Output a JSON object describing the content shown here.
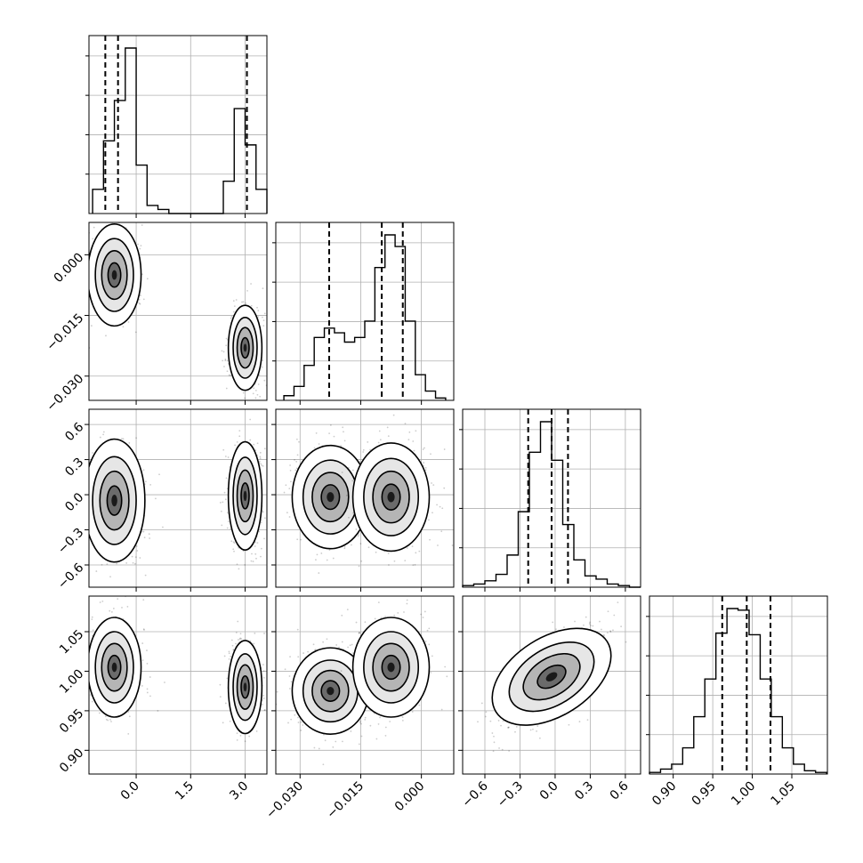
{
  "chart_data": {
    "type": "corner",
    "parameters": 4,
    "x_ticks": [
      {
        "values": [
          0.0,
          1.5,
          3.0
        ],
        "labels": [
          "0.0",
          "1.5",
          "3.0"
        ]
      },
      {
        "values": [
          -0.03,
          -0.015,
          0.0
        ],
        "labels": [
          "−0.030",
          "−0.015",
          "0.000"
        ]
      },
      {
        "values": [
          -0.6,
          -0.3,
          0.0,
          0.3,
          0.6
        ],
        "labels": [
          "−0.6",
          "−0.3",
          "0.0",
          "0.3",
          "0.6"
        ]
      },
      {
        "values": [
          0.9,
          0.95,
          1.0,
          1.05
        ],
        "labels": [
          "0.90",
          "0.95",
          "1.00",
          "1.05"
        ]
      }
    ],
    "y_ticks": {
      "1": {
        "values": [
          0.0,
          -0.015,
          -0.03
        ],
        "labels": [
          "0.000",
          "−0.015",
          "−0.030"
        ]
      },
      "2": {
        "values": [
          0.6,
          0.3,
          0.0,
          -0.3,
          -0.6
        ],
        "labels": [
          "0.6",
          "0.3",
          "0.0",
          "−0.3",
          "−0.6"
        ]
      },
      "3": {
        "values": [
          1.05,
          1.0,
          0.95,
          0.9
        ],
        "labels": [
          "1.05",
          "1.00",
          "0.95",
          "0.90"
        ]
      }
    },
    "ranges": [
      [
        -1.3,
        3.6
      ],
      [
        -0.036,
        0.008
      ],
      [
        -0.79,
        0.73
      ],
      [
        0.87,
        1.095
      ]
    ],
    "histograms": [
      {
        "bins": [
          -1.2,
          -0.9,
          -0.6,
          -0.3,
          0.0,
          0.3,
          0.6,
          0.9,
          1.2,
          1.5,
          1.8,
          2.1,
          2.4,
          2.7,
          3.0,
          3.3,
          3.6
        ],
        "counts": [
          6,
          18,
          28,
          41,
          12,
          2,
          1,
          0,
          0,
          0,
          0,
          0,
          8,
          26,
          17,
          6
        ],
        "quantiles": [
          -0.85,
          -0.5,
          3.05
        ]
      },
      {
        "bins": [
          -0.034,
          -0.0315,
          -0.029,
          -0.0265,
          -0.024,
          -0.0215,
          -0.019,
          -0.0165,
          -0.014,
          -0.0115,
          -0.009,
          -0.0065,
          -0.004,
          -0.0015,
          0.001,
          0.0035,
          0.006
        ],
        "counts": [
          2,
          6,
          15,
          27,
          31,
          29,
          25,
          27,
          34,
          57,
          71,
          66,
          34,
          11,
          4,
          1
        ],
        "quantiles": [
          -0.0228,
          -0.0098,
          -0.0046
        ]
      },
      {
        "bins": [
          -0.79,
          -0.695,
          -0.6,
          -0.505,
          -0.41,
          -0.315,
          -0.22,
          -0.125,
          -0.03,
          0.065,
          0.16,
          0.255,
          0.35,
          0.445,
          0.54,
          0.635,
          0.73
        ],
        "counts": [
          1,
          2,
          4,
          8,
          20,
          47,
          84,
          103,
          79,
          39,
          17,
          7,
          5,
          2,
          1,
          0
        ],
        "quantiles": [
          -0.23,
          -0.03,
          0.11
        ]
      },
      {
        "bins": [
          0.87,
          0.884,
          0.898,
          0.912,
          0.926,
          0.94,
          0.954,
          0.968,
          0.982,
          0.996,
          1.01,
          1.024,
          1.038,
          1.052,
          1.066,
          1.08,
          1.094
        ],
        "counts": [
          1,
          3,
          6,
          16,
          35,
          58,
          86,
          101,
          100,
          85,
          58,
          35,
          16,
          6,
          2,
          1
        ],
        "quantiles": [
          0.962,
          0.993,
          1.023
        ]
      }
    ],
    "modes_2d": {
      "1-0": [
        [
          -0.6,
          -0.005,
          0.35,
          0.006
        ],
        [
          3.0,
          -0.023,
          0.22,
          0.005
        ]
      ],
      "2-0": [
        [
          -0.6,
          -0.05,
          0.4,
          0.25
        ],
        [
          3.0,
          -0.01,
          0.22,
          0.22
        ]
      ],
      "3-0": [
        [
          -0.6,
          1.005,
          0.35,
          0.03
        ],
        [
          3.0,
          0.98,
          0.22,
          0.028
        ]
      ],
      "2-1": [
        [
          -0.0225,
          -0.02,
          0.0045,
          0.21
        ],
        [
          -0.0075,
          -0.02,
          0.0045,
          0.22
        ]
      ],
      "3-1": [
        [
          -0.0225,
          0.975,
          0.0045,
          0.026
        ],
        [
          -0.0075,
          1.005,
          0.0045,
          0.03
        ]
      ],
      "3-2": [
        [
          -0.03,
          0.993,
          0.22,
          0.035,
          0.72
        ]
      ]
    }
  }
}
